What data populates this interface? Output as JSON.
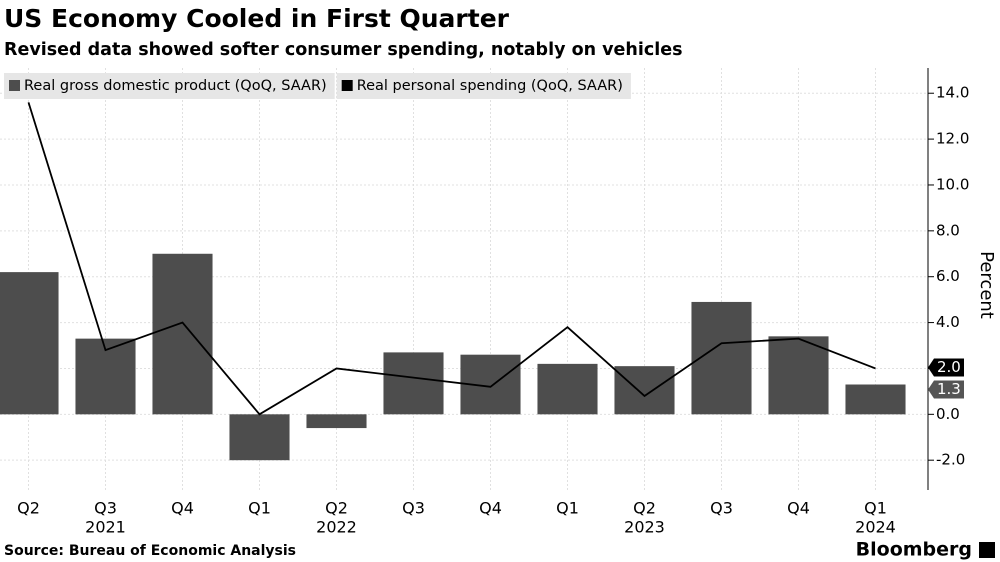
{
  "chart_data": {
    "type": "bar_line",
    "title": "US Economy Cooled in First Quarter",
    "subtitle": "Revised data showed softer consumer spending, notably on vehicles",
    "source": "Source: Bureau of Economic Analysis",
    "brand": "Bloomberg",
    "y_label": "Percent",
    "categories": [
      "Q2",
      "Q3",
      "Q4",
      "Q1",
      "Q2",
      "Q3",
      "Q4",
      "Q1",
      "Q2",
      "Q3",
      "Q4",
      "Q1"
    ],
    "year_labels": [
      null,
      "2021",
      null,
      null,
      "2022",
      null,
      null,
      null,
      "2023",
      null,
      null,
      "2024"
    ],
    "series": [
      {
        "name": "Real gross domestic product (QoQ, SAAR)",
        "kind": "bar",
        "color": "#4d4d4d",
        "values": [
          6.2,
          3.3,
          7.0,
          -2.0,
          -0.6,
          2.7,
          2.6,
          2.2,
          2.1,
          4.9,
          3.4,
          1.3
        ],
        "value_labels": [
          null,
          null,
          null,
          null,
          null,
          null,
          null,
          null,
          null,
          null,
          null,
          "1.3"
        ]
      },
      {
        "name": "Real personal spending (QoQ, SAAR)",
        "kind": "line",
        "color": "#000000",
        "values": [
          13.6,
          2.8,
          4.0,
          0.0,
          2.0,
          1.6,
          1.2,
          3.8,
          0.8,
          3.1,
          3.3,
          2.0
        ],
        "value_labels": [
          null,
          null,
          null,
          null,
          null,
          null,
          null,
          null,
          null,
          null,
          null,
          "2.0"
        ]
      }
    ],
    "ylim": [
      -3.3,
      15.1
    ],
    "yticks": [
      {
        "value": -2,
        "label": "-2.0"
      },
      {
        "value": 0,
        "label": "0.0"
      },
      {
        "value": 2,
        "label": "2.0"
      },
      {
        "value": 4,
        "label": "4.0"
      },
      {
        "value": 6,
        "label": "6.0"
      },
      {
        "value": 8,
        "label": "8.0"
      },
      {
        "value": 10,
        "label": "10.0"
      },
      {
        "value": 12,
        "label": "12.0"
      },
      {
        "value": 14,
        "label": "14.0"
      }
    ],
    "grid": true,
    "legend": "top-left"
  }
}
